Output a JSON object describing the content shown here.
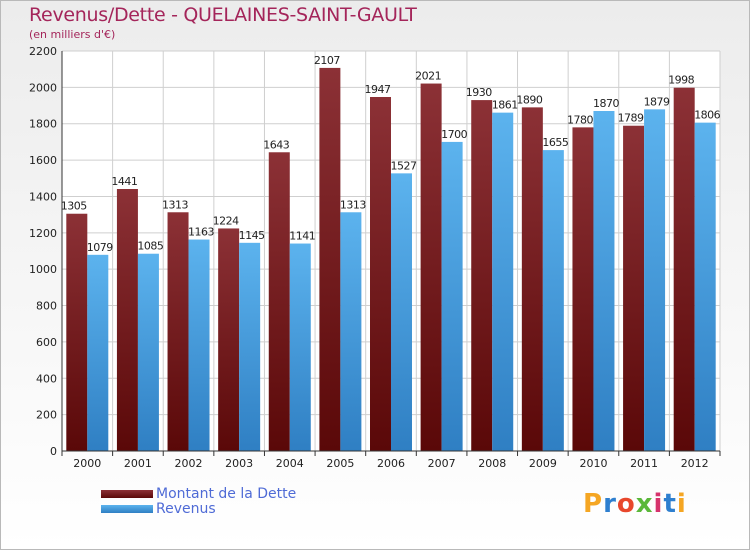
{
  "title": "Revenus/Dette - QUELAINES-SAINT-GAULT",
  "subtitle": "(en milliers d'€)",
  "logo": "Proxiti",
  "legend": {
    "debt": "Montant de la Dette",
    "revenue": "Revenus"
  },
  "colors": {
    "debt": "#7d1f24",
    "revenue": "#4aa8ea",
    "title": "#a4255a"
  },
  "chart_data": {
    "type": "bar",
    "categories": [
      "2000",
      "2001",
      "2002",
      "2003",
      "2004",
      "2005",
      "2006",
      "2007",
      "2008",
      "2009",
      "2010",
      "2011",
      "2012"
    ],
    "series": [
      {
        "name": "Montant de la Dette",
        "values": [
          1305,
          1441,
          1313,
          1224,
          1643,
          2107,
          1947,
          2021,
          1930,
          1890,
          1780,
          1789,
          1998
        ]
      },
      {
        "name": "Revenus",
        "values": [
          1079,
          1085,
          1163,
          1145,
          1141,
          1313,
          1527,
          1700,
          1861,
          1655,
          1870,
          1879,
          1806
        ]
      }
    ],
    "yticks": [
      0,
      200,
      400,
      600,
      800,
      1000,
      1200,
      1400,
      1600,
      1800,
      2000,
      2200
    ],
    "ylim": [
      0,
      2200
    ],
    "grid": true,
    "legend_position": "bottom-left"
  }
}
